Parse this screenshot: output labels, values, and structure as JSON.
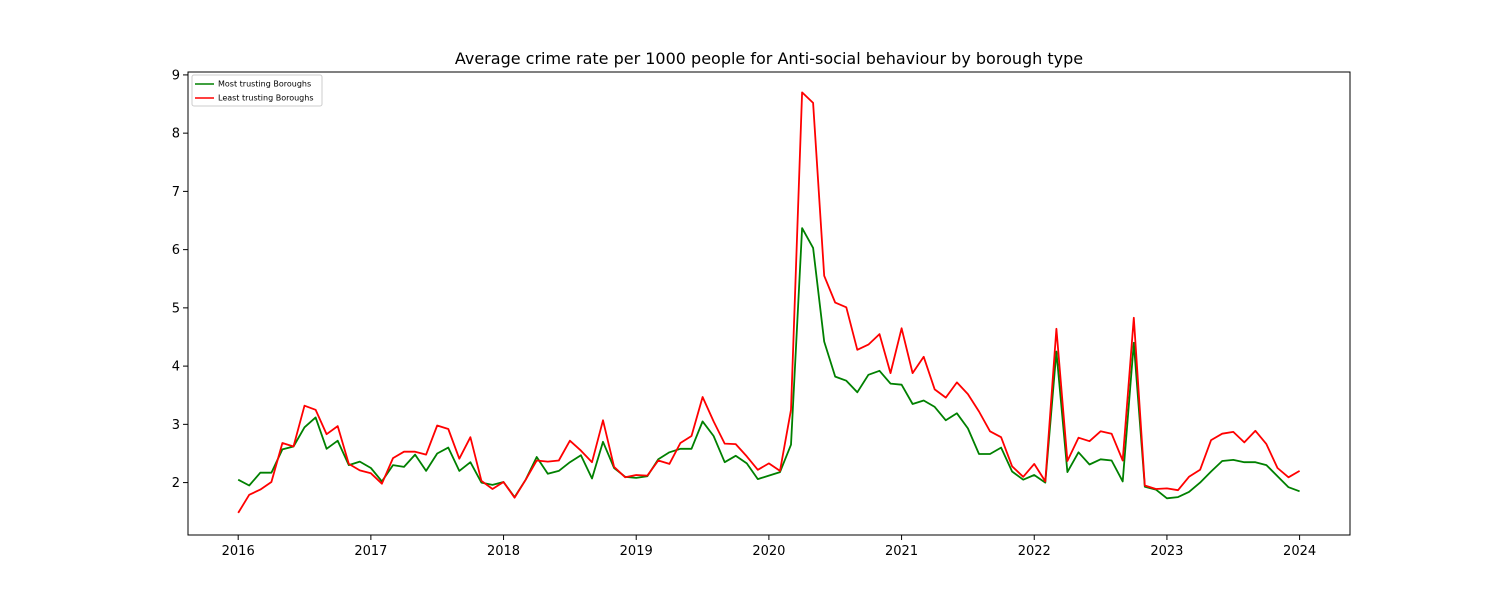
{
  "chart_data": {
    "type": "line",
    "title": "Average crime rate per 1000 people for Anti-social behaviour by borough type",
    "xlabel": "",
    "ylabel": "",
    "xlim": [
      "2015-08-15",
      "2024-05-18"
    ],
    "ylim": [
      1.1,
      9.05
    ],
    "x_ticks": [
      "2016",
      "2017",
      "2018",
      "2019",
      "2020",
      "2021",
      "2022",
      "2023",
      "2024"
    ],
    "y_ticks": [
      2,
      3,
      4,
      5,
      6,
      7,
      8,
      9
    ],
    "grid": false,
    "legend_position": "top-left",
    "x": [
      "2016-01",
      "2016-02",
      "2016-03",
      "2016-04",
      "2016-05",
      "2016-06",
      "2016-07",
      "2016-08",
      "2016-09",
      "2016-10",
      "2016-11",
      "2016-12",
      "2017-01",
      "2017-02",
      "2017-03",
      "2017-04",
      "2017-05",
      "2017-06",
      "2017-07",
      "2017-08",
      "2017-09",
      "2017-10",
      "2017-11",
      "2017-12",
      "2018-01",
      "2018-02",
      "2018-03",
      "2018-04",
      "2018-05",
      "2018-06",
      "2018-07",
      "2018-08",
      "2018-09",
      "2018-10",
      "2018-11",
      "2018-12",
      "2019-01",
      "2019-02",
      "2019-03",
      "2019-04",
      "2019-05",
      "2019-06",
      "2019-07",
      "2019-08",
      "2019-09",
      "2019-10",
      "2019-11",
      "2019-12",
      "2020-01",
      "2020-02",
      "2020-03",
      "2020-04",
      "2020-05",
      "2020-06",
      "2020-07",
      "2020-08",
      "2020-09",
      "2020-10",
      "2020-11",
      "2020-12",
      "2021-01",
      "2021-02",
      "2021-03",
      "2021-04",
      "2021-05",
      "2021-06",
      "2021-07",
      "2021-08",
      "2021-09",
      "2021-10",
      "2021-11",
      "2021-12",
      "2022-01",
      "2022-02",
      "2022-03",
      "2022-04",
      "2022-05",
      "2022-06",
      "2022-07",
      "2022-08",
      "2022-09",
      "2022-10",
      "2022-11",
      "2022-12",
      "2023-01",
      "2023-02",
      "2023-03",
      "2023-04",
      "2023-05",
      "2023-06",
      "2023-07",
      "2023-08",
      "2023-09",
      "2023-10",
      "2023-11",
      "2023-12",
      "2024-01"
    ],
    "series": [
      {
        "name": "Most trusting Boroughs",
        "color": "#008000",
        "values": [
          2.05,
          1.95,
          2.17,
          2.17,
          2.57,
          2.62,
          2.95,
          3.12,
          2.58,
          2.72,
          2.3,
          2.36,
          2.25,
          2.02,
          2.3,
          2.27,
          2.48,
          2.2,
          2.5,
          2.6,
          2.2,
          2.35,
          2.0,
          1.96,
          2.01,
          1.75,
          2.05,
          2.44,
          2.15,
          2.2,
          2.35,
          2.47,
          2.07,
          2.7,
          2.25,
          2.1,
          2.08,
          2.11,
          2.4,
          2.52,
          2.58,
          2.58,
          3.05,
          2.8,
          2.35,
          2.46,
          2.33,
          2.06,
          2.12,
          2.18,
          2.65,
          6.37,
          6.03,
          4.42,
          3.82,
          3.75,
          3.55,
          3.85,
          3.92,
          3.7,
          3.68,
          3.35,
          3.41,
          3.3,
          3.07,
          3.19,
          2.93,
          2.49,
          2.49,
          2.6,
          2.19,
          2.05,
          2.13,
          2.0,
          4.25,
          2.18,
          2.52,
          2.31,
          2.4,
          2.38,
          2.02,
          4.4,
          1.93,
          1.88,
          1.73,
          1.75,
          1.84,
          2.0,
          2.19,
          2.37,
          2.39,
          2.35,
          2.35,
          2.3,
          2.11,
          1.92,
          1.85
        ]
      },
      {
        "name": "Least trusting Boroughs",
        "color": "#ff0000",
        "values": [
          1.48,
          1.79,
          1.88,
          2.01,
          2.68,
          2.62,
          3.32,
          3.25,
          2.83,
          2.97,
          2.32,
          2.21,
          2.16,
          1.98,
          2.42,
          2.53,
          2.53,
          2.48,
          2.98,
          2.92,
          2.41,
          2.78,
          2.03,
          1.89,
          2.01,
          1.74,
          2.05,
          2.38,
          2.36,
          2.38,
          2.72,
          2.55,
          2.35,
          3.07,
          2.27,
          2.09,
          2.13,
          2.12,
          2.38,
          2.32,
          2.68,
          2.8,
          3.47,
          3.05,
          2.67,
          2.66,
          2.45,
          2.22,
          2.33,
          2.2,
          3.25,
          8.7,
          8.52,
          5.55,
          5.09,
          5.01,
          4.28,
          4.37,
          4.55,
          3.88,
          4.65,
          3.88,
          4.16,
          3.6,
          3.46,
          3.72,
          3.52,
          3.22,
          2.88,
          2.78,
          2.28,
          2.1,
          2.32,
          2.02,
          4.64,
          2.37,
          2.77,
          2.71,
          2.88,
          2.84,
          2.38,
          4.83,
          1.95,
          1.89,
          1.9,
          1.87,
          2.1,
          2.22,
          2.73,
          2.84,
          2.87,
          2.69,
          2.89,
          2.66,
          2.25,
          2.09,
          2.2
        ]
      }
    ]
  }
}
